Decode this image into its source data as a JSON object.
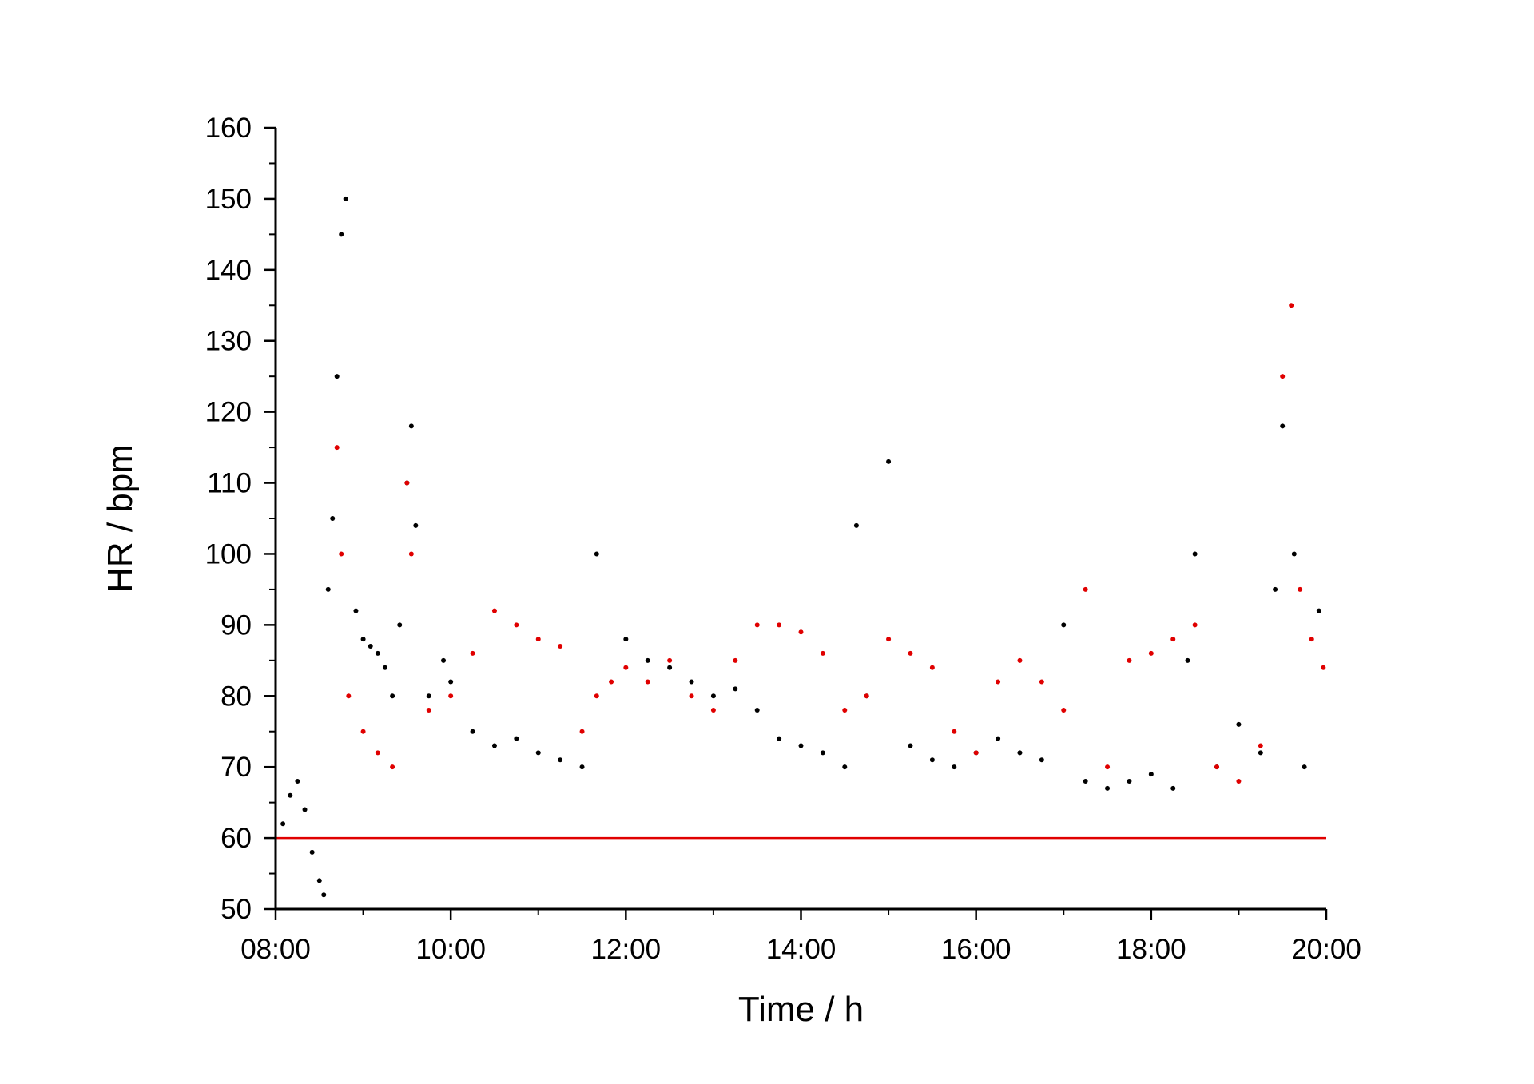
{
  "chart_data": {
    "type": "scatter",
    "title": "",
    "xlabel": "Time / h",
    "ylabel": "HR / bpm",
    "xlim": [
      "08:00",
      "20:00"
    ],
    "ylim": [
      50,
      160
    ],
    "x_tick_labels": [
      "08:00",
      "10:00",
      "12:00",
      "14:00",
      "16:00",
      "18:00",
      "20:00"
    ],
    "y_tick_labels": [
      "50",
      "60",
      "70",
      "80",
      "90",
      "100",
      "110",
      "120",
      "130",
      "140",
      "150",
      "160"
    ],
    "grid": false,
    "legend": "none",
    "reference_line": {
      "y": 60,
      "color": "#e00000"
    },
    "series": [
      {
        "color": "#000000",
        "points": [
          [
            "08:05",
            62
          ],
          [
            "08:10",
            66
          ],
          [
            "08:15",
            68
          ],
          [
            "08:20",
            64
          ],
          [
            "08:25",
            58
          ],
          [
            "08:30",
            54
          ],
          [
            "08:33",
            52
          ],
          [
            "08:36",
            95
          ],
          [
            "08:39",
            105
          ],
          [
            "08:42",
            125
          ],
          [
            "08:45",
            145
          ],
          [
            "08:48",
            150
          ],
          [
            "08:55",
            92
          ],
          [
            "09:00",
            88
          ],
          [
            "09:05",
            87
          ],
          [
            "09:10",
            86
          ],
          [
            "09:15",
            84
          ],
          [
            "09:20",
            80
          ],
          [
            "09:25",
            90
          ],
          [
            "09:30",
            110
          ],
          [
            "09:33",
            118
          ],
          [
            "09:36",
            104
          ],
          [
            "09:45",
            80
          ],
          [
            "09:55",
            85
          ],
          [
            "10:00",
            82
          ],
          [
            "10:15",
            75
          ],
          [
            "10:30",
            73
          ],
          [
            "10:45",
            74
          ],
          [
            "11:00",
            72
          ],
          [
            "11:15",
            71
          ],
          [
            "11:30",
            70
          ],
          [
            "11:40",
            100
          ],
          [
            "12:00",
            88
          ],
          [
            "12:15",
            85
          ],
          [
            "12:30",
            84
          ],
          [
            "12:45",
            82
          ],
          [
            "13:00",
            80
          ],
          [
            "13:15",
            81
          ],
          [
            "13:30",
            78
          ],
          [
            "13:45",
            74
          ],
          [
            "14:00",
            73
          ],
          [
            "14:15",
            72
          ],
          [
            "14:30",
            70
          ],
          [
            "14:38",
            104
          ],
          [
            "14:45",
            80
          ],
          [
            "15:00",
            113
          ],
          [
            "15:15",
            73
          ],
          [
            "15:30",
            71
          ],
          [
            "15:45",
            70
          ],
          [
            "16:00",
            72
          ],
          [
            "16:15",
            74
          ],
          [
            "16:30",
            72
          ],
          [
            "16:45",
            71
          ],
          [
            "17:00",
            90
          ],
          [
            "17:15",
            68
          ],
          [
            "17:30",
            67
          ],
          [
            "17:45",
            68
          ],
          [
            "18:00",
            69
          ],
          [
            "18:15",
            67
          ],
          [
            "18:25",
            85
          ],
          [
            "18:30",
            100
          ],
          [
            "18:45",
            70
          ],
          [
            "19:00",
            76
          ],
          [
            "19:15",
            72
          ],
          [
            "19:25",
            95
          ],
          [
            "19:30",
            118
          ],
          [
            "19:38",
            100
          ],
          [
            "19:45",
            70
          ],
          [
            "19:55",
            92
          ]
        ]
      },
      {
        "color": "#e00000",
        "points": [
          [
            "08:42",
            115
          ],
          [
            "08:45",
            100
          ],
          [
            "08:50",
            80
          ],
          [
            "09:00",
            75
          ],
          [
            "09:10",
            72
          ],
          [
            "09:20",
            70
          ],
          [
            "09:30",
            110
          ],
          [
            "09:33",
            100
          ],
          [
            "09:45",
            78
          ],
          [
            "10:00",
            80
          ],
          [
            "10:15",
            86
          ],
          [
            "10:30",
            92
          ],
          [
            "10:45",
            90
          ],
          [
            "11:00",
            88
          ],
          [
            "11:15",
            87
          ],
          [
            "11:30",
            75
          ],
          [
            "11:40",
            80
          ],
          [
            "11:50",
            82
          ],
          [
            "12:00",
            84
          ],
          [
            "12:15",
            82
          ],
          [
            "12:30",
            85
          ],
          [
            "12:45",
            80
          ],
          [
            "13:00",
            78
          ],
          [
            "13:15",
            85
          ],
          [
            "13:30",
            90
          ],
          [
            "13:45",
            90
          ],
          [
            "14:00",
            89
          ],
          [
            "14:15",
            86
          ],
          [
            "14:30",
            78
          ],
          [
            "14:45",
            80
          ],
          [
            "15:00",
            88
          ],
          [
            "15:15",
            86
          ],
          [
            "15:30",
            84
          ],
          [
            "15:45",
            75
          ],
          [
            "16:00",
            72
          ],
          [
            "16:15",
            82
          ],
          [
            "16:30",
            85
          ],
          [
            "16:45",
            82
          ],
          [
            "17:00",
            78
          ],
          [
            "17:15",
            95
          ],
          [
            "17:30",
            70
          ],
          [
            "17:45",
            85
          ],
          [
            "18:00",
            86
          ],
          [
            "18:15",
            88
          ],
          [
            "18:30",
            90
          ],
          [
            "18:45",
            70
          ],
          [
            "19:00",
            68
          ],
          [
            "19:15",
            73
          ],
          [
            "19:30",
            125
          ],
          [
            "19:36",
            135
          ],
          [
            "19:42",
            95
          ],
          [
            "19:50",
            88
          ],
          [
            "19:58",
            84
          ]
        ]
      }
    ]
  }
}
